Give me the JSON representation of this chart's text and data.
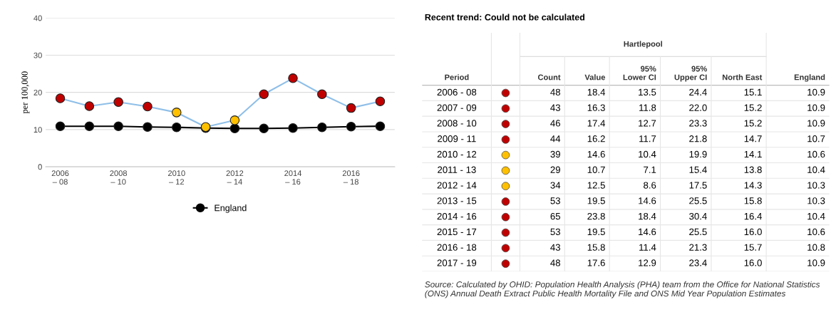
{
  "chart_data": [
    {
      "type": "line",
      "ylabel": "per 100,000",
      "categories": [
        "2006\n– 08",
        null,
        "2008\n– 10",
        null,
        "2010\n– 12",
        null,
        "2012\n– 14",
        null,
        "2014\n– 16",
        null,
        "2016\n– 18",
        null
      ],
      "series": [
        {
          "color": "#8fbfe8",
          "colors": [
            "#c00000",
            "#c00000",
            "#c00000",
            "#c00000",
            "#ffc000",
            "#ffc000",
            "#ffc000",
            "#c00000",
            "#c00000",
            "#c00000",
            "#c00000",
            "#c00000"
          ],
          "values": [
            18.4,
            16.3,
            17.4,
            16.2,
            14.6,
            10.7,
            12.5,
            19.5,
            23.8,
            19.5,
            15.8,
            17.6
          ]
        },
        {
          "name": "England",
          "color": "#000000",
          "values": [
            10.9,
            10.9,
            10.9,
            10.7,
            10.6,
            10.4,
            10.3,
            10.3,
            10.4,
            10.6,
            10.8,
            10.9
          ]
        }
      ],
      "ylim": [
        0,
        40
      ],
      "yticks": [
        0,
        10,
        20,
        30,
        40
      ],
      "grid": "y",
      "legend": "bottom",
      "marker": "circle",
      "line_style": "solid"
    },
    {
      "type": "other",
      "title": "Recent trend: Could not be calculated",
      "annotations": [
        "Hartlepool",
        "Source: Calculated by OHID: Population Health Analysis (PHA) team from the Office for National Statistics (ONS) Annual Death Extract Public Health Mortality File and ONS Mid Year Population Estimates"
      ],
      "categories": [
        "Period",
        null,
        "Count",
        "Value",
        "95%\nLower CI",
        "95%\nUpper CI",
        "North East",
        "England"
      ],
      "y_categories": [
        "2006 - 08",
        "2007 - 09",
        "2008 - 10",
        "2009 - 11",
        "2010 - 12",
        "2011 - 13",
        "2012 - 14",
        "2013 - 15",
        "2014 - 16",
        "2015 - 17",
        "2016 - 18",
        "2017 - 19"
      ],
      "colors": [
        "#c00000",
        "#c00000",
        "#c00000",
        "#c00000",
        "#ffc000",
        "#ffc000",
        "#ffc000",
        "#c00000",
        "#c00000",
        "#c00000",
        "#c00000",
        "#c00000"
      ],
      "cell_labels": [
        [
          "48",
          "18.4",
          "13.5",
          "24.4",
          "15.1",
          "10.9"
        ],
        [
          "43",
          "16.3",
          "11.8",
          "22.0",
          "15.2",
          "10.9"
        ],
        [
          "46",
          "17.4",
          "12.7",
          "23.3",
          "15.2",
          "10.9"
        ],
        [
          "44",
          "16.2",
          "11.7",
          "21.8",
          "14.7",
          "10.7"
        ],
        [
          "39",
          "14.6",
          "10.4",
          "19.9",
          "14.1",
          "10.6"
        ],
        [
          "29",
          "10.7",
          "7.1",
          "15.4",
          "13.8",
          "10.4"
        ],
        [
          "34",
          "12.5",
          "8.6",
          "17.5",
          "14.3",
          "10.3"
        ],
        [
          "53",
          "19.5",
          "14.6",
          "25.5",
          "15.8",
          "10.3"
        ],
        [
          "65",
          "23.8",
          "18.4",
          "30.4",
          "16.4",
          "10.4"
        ],
        [
          "53",
          "19.5",
          "14.6",
          "25.5",
          "16.0",
          "10.6"
        ],
        [
          "43",
          "15.8",
          "11.4",
          "21.3",
          "15.7",
          "10.8"
        ],
        [
          "48",
          "17.6",
          "12.9",
          "23.4",
          "16.0",
          "10.9"
        ]
      ]
    }
  ]
}
